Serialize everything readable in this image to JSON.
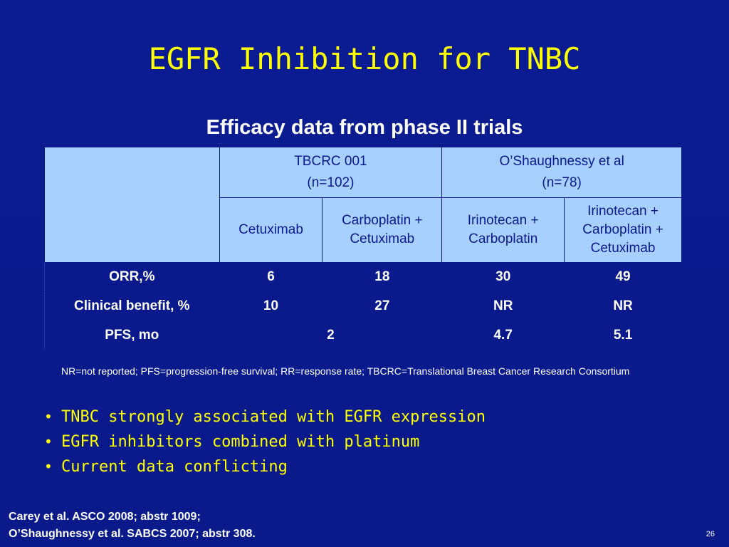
{
  "title": "EGFR Inhibition for TNBC",
  "table_heading": "Efficacy data from phase II trials",
  "table": {
    "groups": [
      {
        "name": "TBCRC 001",
        "n": "(n=102)"
      },
      {
        "name": "O’Shaughnessy et al",
        "n": "(n=78)"
      }
    ],
    "subheaders": [
      "Cetuximab",
      "Carboplatin + Cetuximab",
      "Irinotecan + Carboplatin",
      "Irinotecan + Carboplatin + Cetuximab"
    ],
    "rows": [
      {
        "label": "ORR,%",
        "values": [
          "6",
          "18",
          "30",
          "49"
        ]
      },
      {
        "label": "Clinical benefit, %",
        "values": [
          "10",
          "27",
          "NR",
          "NR"
        ]
      },
      {
        "label": "PFS, mo",
        "values": [
          "2",
          "4.7",
          "5.1"
        ]
      }
    ]
  },
  "footnote": "NR=not reported; PFS=progression-free survival; RR=response rate; TBCRC=Translational Breast Cancer Research Consortium",
  "bullets": [
    "TNBC strongly associated with EGFR expression",
    "EGFR inhibitors combined with platinum",
    "Current data conflicting"
  ],
  "bullet_symbol": "•",
  "references": [
    "Carey et al. ASCO 2008; abstr 1009;",
    "O’Shaughnessy et al. SABCS 2007; abstr 308."
  ],
  "page_number": "26",
  "colors": {
    "background": "#0a1a8c",
    "title": "#ffff00",
    "header_fill": "#a8d0ff",
    "text": "#ffffff"
  }
}
